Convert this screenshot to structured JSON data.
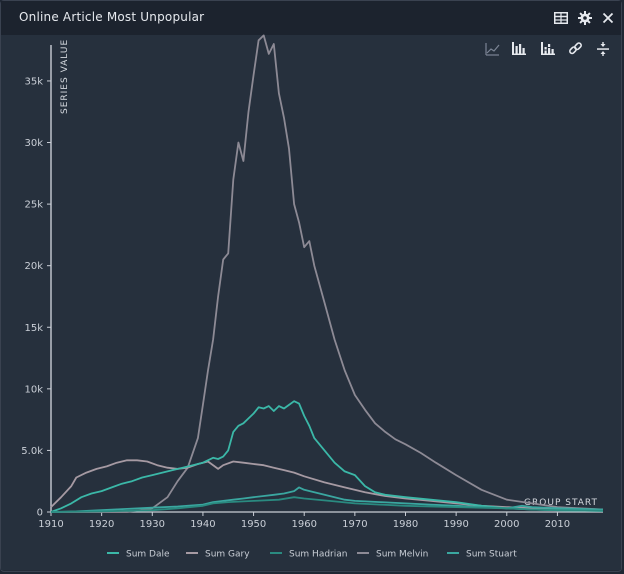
{
  "window": {
    "title": "Online Article Most Unpopular",
    "buttons": [
      {
        "name": "table-view-icon"
      },
      {
        "name": "gear-icon"
      },
      {
        "name": "close-icon"
      }
    ]
  },
  "toolbar": {
    "icons": [
      "line-chart-icon",
      "bar-chart-icon",
      "stacked-bar-chart-icon",
      "link-icon",
      "collapse-icon"
    ]
  },
  "colors": {
    "background": "#26303d",
    "Sum Dale": "#3bb8a8",
    "Sum Gary": "#a69aa3",
    "Sum Hadrian": "#2a8a80",
    "Sum Melvin": "#8d8a95",
    "Sum Stuart": "#3aa7a0"
  },
  "chart_data": {
    "type": "line",
    "title": "",
    "xlabel": "GROUP START",
    "ylabel": "SERIES VALUE",
    "xlim": [
      1910,
      2019
    ],
    "ylim": [
      0,
      38000
    ],
    "x_ticks": [
      "1910",
      "1920",
      "1930",
      "1940",
      "1950",
      "1960",
      "1970",
      "1980",
      "1990",
      "2000",
      "2010"
    ],
    "y_ticks": [
      "0",
      "5.0k",
      "10k",
      "15k",
      "20k",
      "25k",
      "30k",
      "35k"
    ],
    "legend_position": "bottom",
    "series": [
      {
        "name": "Sum Melvin",
        "color": "#8d8a95",
        "points": [
          [
            1910,
            0
          ],
          [
            1920,
            0
          ],
          [
            1925,
            0
          ],
          [
            1930,
            300
          ],
          [
            1933,
            1200
          ],
          [
            1935,
            2500
          ],
          [
            1937,
            3600
          ],
          [
            1939,
            6000
          ],
          [
            1940,
            8700
          ],
          [
            1941,
            11500
          ],
          [
            1942,
            14000
          ],
          [
            1943,
            17500
          ],
          [
            1944,
            20500
          ],
          [
            1945,
            21000
          ],
          [
            1946,
            27000
          ],
          [
            1947,
            30000
          ],
          [
            1948,
            28500
          ],
          [
            1949,
            32500
          ],
          [
            1950,
            35500
          ],
          [
            1951,
            38300
          ],
          [
            1952,
            38700
          ],
          [
            1953,
            37200
          ],
          [
            1954,
            38000
          ],
          [
            1955,
            34000
          ],
          [
            1956,
            32000
          ],
          [
            1957,
            29500
          ],
          [
            1958,
            25000
          ],
          [
            1959,
            23500
          ],
          [
            1960,
            21500
          ],
          [
            1961,
            22000
          ],
          [
            1962,
            20000
          ],
          [
            1964,
            17000
          ],
          [
            1966,
            14000
          ],
          [
            1968,
            11500
          ],
          [
            1970,
            9500
          ],
          [
            1972,
            8300
          ],
          [
            1974,
            7200
          ],
          [
            1976,
            6500
          ],
          [
            1978,
            5900
          ],
          [
            1980,
            5500
          ],
          [
            1983,
            4800
          ],
          [
            1986,
            4000
          ],
          [
            1990,
            3000
          ],
          [
            1995,
            1800
          ],
          [
            2000,
            1000
          ],
          [
            2005,
            700
          ],
          [
            2010,
            400
          ],
          [
            2019,
            200
          ]
        ]
      },
      {
        "name": "Sum Gary",
        "color": "#a69aa3",
        "points": [
          [
            1910,
            400
          ],
          [
            1912,
            1200
          ],
          [
            1914,
            2100
          ],
          [
            1915,
            2800
          ],
          [
            1917,
            3200
          ],
          [
            1919,
            3500
          ],
          [
            1921,
            3700
          ],
          [
            1923,
            4000
          ],
          [
            1925,
            4200
          ],
          [
            1927,
            4200
          ],
          [
            1929,
            4100
          ],
          [
            1931,
            3800
          ],
          [
            1933,
            3600
          ],
          [
            1935,
            3500
          ],
          [
            1937,
            3600
          ],
          [
            1939,
            3900
          ],
          [
            1941,
            4100
          ],
          [
            1943,
            3500
          ],
          [
            1944,
            3800
          ],
          [
            1946,
            4100
          ],
          [
            1948,
            4000
          ],
          [
            1950,
            3900
          ],
          [
            1952,
            3800
          ],
          [
            1954,
            3600
          ],
          [
            1956,
            3400
          ],
          [
            1958,
            3200
          ],
          [
            1960,
            2900
          ],
          [
            1964,
            2400
          ],
          [
            1968,
            2000
          ],
          [
            1972,
            1600
          ],
          [
            1976,
            1300
          ],
          [
            1980,
            1100
          ],
          [
            1985,
            900
          ],
          [
            1990,
            700
          ],
          [
            1995,
            500
          ],
          [
            2000,
            400
          ],
          [
            2005,
            300
          ],
          [
            2010,
            250
          ],
          [
            2019,
            200
          ]
        ]
      },
      {
        "name": "Sum Dale",
        "color": "#3bb8a8",
        "points": [
          [
            1910,
            0
          ],
          [
            1912,
            300
          ],
          [
            1914,
            700
          ],
          [
            1916,
            1200
          ],
          [
            1918,
            1500
          ],
          [
            1920,
            1700
          ],
          [
            1922,
            2000
          ],
          [
            1924,
            2300
          ],
          [
            1926,
            2500
          ],
          [
            1928,
            2800
          ],
          [
            1930,
            3000
          ],
          [
            1932,
            3200
          ],
          [
            1934,
            3400
          ],
          [
            1936,
            3600
          ],
          [
            1938,
            3800
          ],
          [
            1940,
            4000
          ],
          [
            1942,
            4400
          ],
          [
            1943,
            4300
          ],
          [
            1944,
            4500
          ],
          [
            1945,
            5000
          ],
          [
            1946,
            6500
          ],
          [
            1947,
            7000
          ],
          [
            1948,
            7200
          ],
          [
            1949,
            7600
          ],
          [
            1950,
            8000
          ],
          [
            1951,
            8500
          ],
          [
            1952,
            8400
          ],
          [
            1953,
            8600
          ],
          [
            1954,
            8200
          ],
          [
            1955,
            8600
          ],
          [
            1956,
            8400
          ],
          [
            1957,
            8700
          ],
          [
            1958,
            9000
          ],
          [
            1959,
            8800
          ],
          [
            1960,
            7800
          ],
          [
            1961,
            7000
          ],
          [
            1962,
            6000
          ],
          [
            1964,
            5000
          ],
          [
            1966,
            4000
          ],
          [
            1968,
            3300
          ],
          [
            1970,
            3000
          ],
          [
            1972,
            2100
          ],
          [
            1974,
            1600
          ],
          [
            1976,
            1400
          ],
          [
            1980,
            1200
          ],
          [
            1985,
            1000
          ],
          [
            1990,
            800
          ],
          [
            1995,
            500
          ],
          [
            2000,
            300
          ],
          [
            2005,
            200
          ],
          [
            2010,
            150
          ],
          [
            2019,
            100
          ]
        ]
      },
      {
        "name": "Sum Stuart",
        "color": "#3aa7a0",
        "points": [
          [
            1910,
            0
          ],
          [
            1915,
            50
          ],
          [
            1920,
            150
          ],
          [
            1925,
            250
          ],
          [
            1930,
            350
          ],
          [
            1935,
            450
          ],
          [
            1940,
            600
          ],
          [
            1942,
            800
          ],
          [
            1944,
            900
          ],
          [
            1946,
            1000
          ],
          [
            1948,
            1100
          ],
          [
            1950,
            1200
          ],
          [
            1952,
            1300
          ],
          [
            1954,
            1400
          ],
          [
            1956,
            1500
          ],
          [
            1958,
            1700
          ],
          [
            1959,
            2000
          ],
          [
            1960,
            1800
          ],
          [
            1962,
            1600
          ],
          [
            1964,
            1400
          ],
          [
            1966,
            1200
          ],
          [
            1968,
            1000
          ],
          [
            1970,
            900
          ],
          [
            1975,
            800
          ],
          [
            1980,
            700
          ],
          [
            1985,
            600
          ],
          [
            1990,
            500
          ],
          [
            1995,
            400
          ],
          [
            2000,
            300
          ],
          [
            2003,
            500
          ],
          [
            2005,
            400
          ],
          [
            2010,
            300
          ],
          [
            2019,
            200
          ]
        ]
      },
      {
        "name": "Sum Hadrian",
        "color": "#2a8a80",
        "points": [
          [
            1910,
            0
          ],
          [
            1920,
            50
          ],
          [
            1930,
            150
          ],
          [
            1935,
            300
          ],
          [
            1940,
            500
          ],
          [
            1942,
            700
          ],
          [
            1945,
            800
          ],
          [
            1950,
            900
          ],
          [
            1955,
            1000
          ],
          [
            1958,
            1200
          ],
          [
            1960,
            1100
          ],
          [
            1965,
            900
          ],
          [
            1970,
            700
          ],
          [
            1975,
            600
          ],
          [
            1980,
            500
          ],
          [
            1985,
            450
          ],
          [
            1990,
            400
          ],
          [
            1995,
            350
          ],
          [
            2000,
            300
          ],
          [
            2005,
            200
          ],
          [
            2010,
            150
          ],
          [
            2019,
            100
          ]
        ]
      }
    ]
  }
}
